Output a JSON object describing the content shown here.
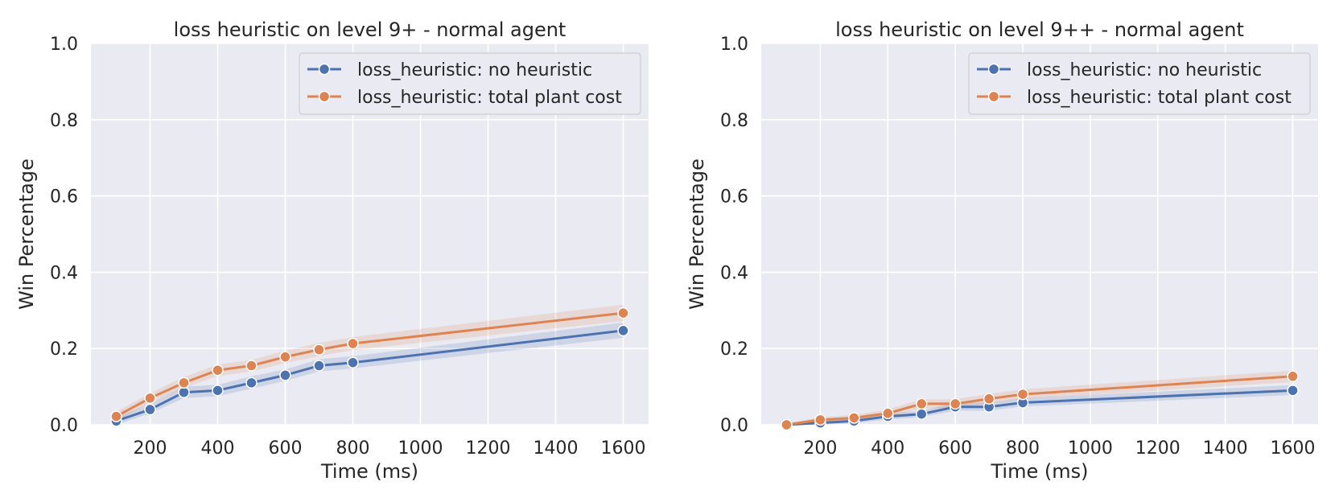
{
  "chart_data": [
    {
      "type": "line",
      "title": "loss heuristic on level 9+ - normal agent",
      "xlabel": "Time (ms)",
      "ylabel": "Win Percentage",
      "x": [
        100,
        200,
        300,
        400,
        500,
        600,
        700,
        800,
        1600
      ],
      "xticks": [
        "200",
        "400",
        "600",
        "800",
        "1000",
        "1200",
        "1400",
        "1600"
      ],
      "yticks": [
        "0.0",
        "0.2",
        "0.4",
        "0.6",
        "0.8",
        "1.0"
      ],
      "xlim": [
        25,
        1675
      ],
      "ylim": [
        0,
        1
      ],
      "grid": true,
      "legend_position": "top-right",
      "series": [
        {
          "name": "loss_heuristic: no heuristic",
          "color": "#4c72b0",
          "values": [
            0.01,
            0.04,
            0.085,
            0.09,
            0.11,
            0.13,
            0.155,
            0.163,
            0.247
          ],
          "ci_low": [
            0.0,
            0.03,
            0.07,
            0.075,
            0.095,
            0.115,
            0.14,
            0.148,
            0.228
          ],
          "ci_high": [
            0.02,
            0.055,
            0.1,
            0.105,
            0.127,
            0.145,
            0.172,
            0.18,
            0.268
          ]
        },
        {
          "name": "loss_heuristic: total plant cost",
          "color": "#dd8452",
          "values": [
            0.022,
            0.07,
            0.11,
            0.143,
            0.155,
            0.178,
            0.197,
            0.213,
            0.293
          ],
          "ci_low": [
            0.01,
            0.057,
            0.096,
            0.128,
            0.14,
            0.162,
            0.18,
            0.196,
            0.272
          ],
          "ci_high": [
            0.034,
            0.083,
            0.125,
            0.158,
            0.17,
            0.194,
            0.215,
            0.23,
            0.315
          ]
        }
      ]
    },
    {
      "type": "line",
      "title": "loss heuristic on level 9++ - normal agent",
      "xlabel": "Time (ms)",
      "ylabel": "Win Percentage",
      "x": [
        100,
        200,
        300,
        400,
        500,
        600,
        700,
        800,
        1600
      ],
      "xticks": [
        "200",
        "400",
        "600",
        "800",
        "1000",
        "1200",
        "1400",
        "1600"
      ],
      "yticks": [
        "0.0",
        "0.2",
        "0.4",
        "0.6",
        "0.8",
        "1.0"
      ],
      "xlim": [
        25,
        1675
      ],
      "ylim": [
        0,
        1
      ],
      "grid": true,
      "legend_position": "top-right",
      "series": [
        {
          "name": "loss_heuristic: no heuristic",
          "color": "#4c72b0",
          "values": [
            0.0,
            0.005,
            0.01,
            0.022,
            0.028,
            0.047,
            0.047,
            0.058,
            0.09
          ],
          "ci_low": [
            0.0,
            0.0,
            0.004,
            0.014,
            0.02,
            0.037,
            0.037,
            0.048,
            0.078
          ],
          "ci_high": [
            0.003,
            0.01,
            0.017,
            0.03,
            0.037,
            0.058,
            0.058,
            0.07,
            0.104
          ]
        },
        {
          "name": "loss_heuristic: total plant cost",
          "color": "#dd8452",
          "values": [
            0.0,
            0.013,
            0.018,
            0.03,
            0.055,
            0.055,
            0.068,
            0.08,
            0.127
          ],
          "ci_low": [
            0.0,
            0.006,
            0.01,
            0.021,
            0.043,
            0.043,
            0.056,
            0.068,
            0.112
          ],
          "ci_high": [
            0.004,
            0.02,
            0.026,
            0.04,
            0.067,
            0.067,
            0.081,
            0.093,
            0.142
          ]
        }
      ]
    }
  ]
}
